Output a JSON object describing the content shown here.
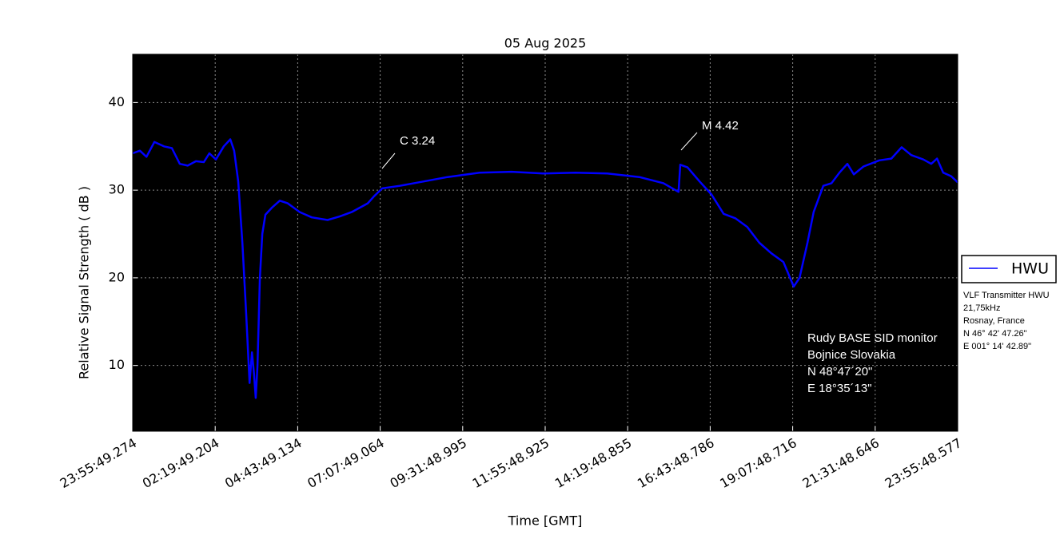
{
  "chart_data": {
    "type": "line",
    "title": "05 Aug 2025",
    "x_label": "Time [GMT]",
    "y_label": "Relative Signal Strength ( dB )",
    "x": [
      0,
      0.21,
      0.4,
      0.63,
      0.91,
      1.14,
      1.37,
      1.6,
      1.84,
      2.07,
      2.23,
      2.42,
      2.65,
      2.84,
      2.95,
      3.07,
      3.19,
      3.3,
      3.4,
      3.47,
      3.53,
      3.58,
      3.63,
      3.7,
      3.77,
      3.86,
      4.05,
      4.28,
      4.51,
      4.86,
      5.21,
      5.67,
      6.02,
      6.37,
      6.84,
      7.02,
      7.26,
      7.77,
      8.47,
      9.16,
      10.09,
      11.02,
      11.95,
      12.88,
      13.81,
      14.74,
      15.44,
      15.88,
      15.93,
      16.14,
      16.49,
      16.84,
      17.19,
      17.53,
      17.88,
      18.23,
      18.58,
      18.93,
      19.23,
      19.4,
      19.63,
      19.81,
      20.09,
      20.33,
      20.56,
      20.79,
      20.98,
      21.26,
      21.72,
      22.07,
      22.37,
      22.65,
      23.0,
      23.23,
      23.4,
      23.58,
      23.81,
      24.0
    ],
    "series": [
      {
        "name": "HWU",
        "color": "#0000ff",
        "values": [
          34.2,
          34.5,
          33.8,
          35.5,
          35.0,
          34.8,
          33.0,
          32.8,
          33.3,
          33.2,
          34.2,
          33.5,
          35.0,
          35.8,
          34.5,
          31.0,
          24.0,
          16.0,
          8.0,
          11.5,
          9.0,
          6.3,
          10.0,
          20.0,
          25.0,
          27.2,
          28.0,
          28.8,
          28.5,
          27.5,
          26.9,
          26.6,
          27.0,
          27.5,
          28.5,
          29.3,
          30.2,
          30.5,
          31.0,
          31.5,
          32.0,
          32.1,
          31.9,
          32.0,
          31.9,
          31.5,
          30.8,
          29.8,
          32.9,
          32.6,
          31.0,
          29.5,
          27.3,
          26.8,
          25.8,
          24.0,
          22.8,
          21.8,
          19.0,
          20.0,
          24.0,
          27.5,
          30.5,
          30.8,
          32.0,
          33.0,
          31.8,
          32.7,
          33.4,
          33.6,
          34.9,
          34.0,
          33.5,
          33.0,
          33.6,
          32.0,
          31.6,
          30.9
        ]
      }
    ],
    "xlim": [
      0,
      24
    ],
    "xticks": [
      {
        "value": 0,
        "label": "23:55:49.274"
      },
      {
        "value": 2.4,
        "label": "02:19:49.204"
      },
      {
        "value": 4.8,
        "label": "04:43:49.134"
      },
      {
        "value": 7.2,
        "label": "07:07:49.064"
      },
      {
        "value": 9.6,
        "label": "09:31:48.995"
      },
      {
        "value": 12,
        "label": "11:55:48.925"
      },
      {
        "value": 14.4,
        "label": "14:19:48.855"
      },
      {
        "value": 16.8,
        "label": "16:43:48.786"
      },
      {
        "value": 19.2,
        "label": "19:07:48.716"
      },
      {
        "value": 21.6,
        "label": "21:31:48.646"
      },
      {
        "value": 24,
        "label": "23:55:48.577"
      }
    ],
    "ylim": [
      2.5,
      45.5
    ],
    "yticks": [
      10,
      20,
      30,
      40
    ],
    "grid": true,
    "legend": "outside right",
    "annotations": [
      "C 3.24",
      "M 4.42"
    ],
    "station_info": [
      "Rudy BASE SID monitor",
      "Bojnice Slovakia",
      "N 48°47´20\"",
      "E 18°35´13\""
    ],
    "transmitter_info": [
      "VLF Transmitter HWU",
      "21,75kHz",
      "Rosnay, France",
      "N 46° 42' 47.26\"",
      "E 001° 14' 42.89\""
    ]
  }
}
